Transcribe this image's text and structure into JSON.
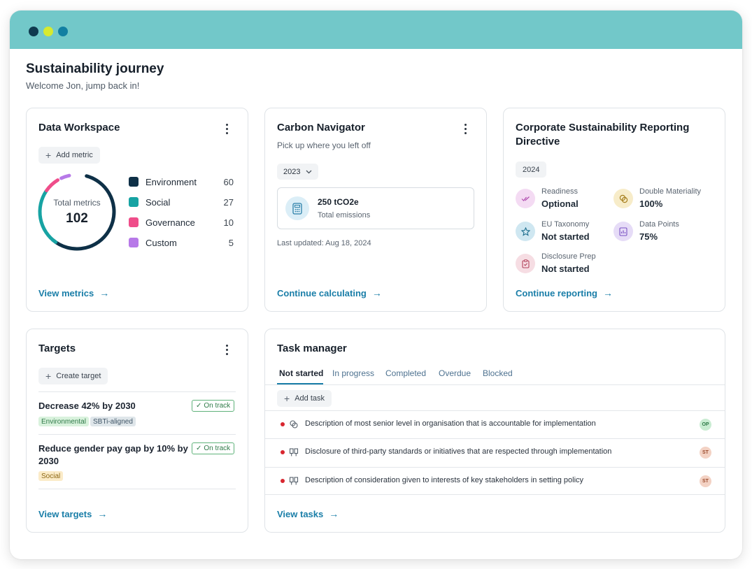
{
  "window": {
    "dots": [
      "#0f3a4f",
      "#d6ea2f",
      "#127fa2"
    ]
  },
  "header": {
    "title": "Sustainability journey",
    "subtitle": "Welcome Jon, jump back in!"
  },
  "data_workspace": {
    "title": "Data Workspace",
    "add_metric": "Add metric",
    "total_label": "Total metrics",
    "total_value": "102",
    "legend": [
      {
        "label": "Environment",
        "value": "60",
        "color": "#0e3047"
      },
      {
        "label": "Social",
        "value": "27",
        "color": "#17a3a3"
      },
      {
        "label": "Governance",
        "value": "10",
        "color": "#ef4d8a"
      },
      {
        "label": "Custom",
        "value": "5",
        "color": "#b779e8"
      }
    ],
    "link": "View metrics"
  },
  "carbon": {
    "title": "Carbon Navigator",
    "subtitle": "Pick up where you left off",
    "year": "2023",
    "emissions_value": "250 tCO2e",
    "emissions_label": "Total emissions",
    "updated": "Last updated: Aug 18, 2024",
    "link": "Continue calculating"
  },
  "csrd": {
    "title_line1": "Corporate Sustainability Reporting",
    "title_line2": "Directive",
    "year": "2024",
    "stats": [
      {
        "label": "Readiness",
        "value": "Optional",
        "icon": "double-check-icon",
        "bg": "#f4dbf3",
        "fg": "#b14fb0"
      },
      {
        "label": "Double Materiality",
        "value": "100%",
        "icon": "linked-circles-icon",
        "bg": "#f7ecc9",
        "fg": "#a7801f"
      },
      {
        "label": "EU Taxonomy",
        "value": "Not started",
        "icon": "star-icon",
        "bg": "#cfe7f1",
        "fg": "#1f6f8f"
      },
      {
        "label": "Data Points",
        "value": "75%",
        "icon": "data-sheet-icon",
        "bg": "#e6dcf7",
        "fg": "#7b52c4"
      },
      {
        "label": "Disclosure Prep",
        "value": "Not started",
        "icon": "clipboard-icon",
        "bg": "#f6dde3",
        "fg": "#b3435c"
      }
    ],
    "link": "Continue reporting"
  },
  "targets": {
    "title": "Targets",
    "create": "Create target",
    "items": [
      {
        "title": "Decrease 42% by 2030",
        "status": "On track",
        "tags": [
          "Environmental",
          "SBTi-aligned"
        ]
      },
      {
        "title_line1": "Reduce gender pay gap by 10% by",
        "title_line2": "2030",
        "status": "On track",
        "tags": [
          "Social"
        ]
      }
    ],
    "link": "View targets"
  },
  "tasks": {
    "title": "Task manager",
    "tabs": [
      "Not started",
      "In progress",
      "Completed",
      "Overdue",
      "Blocked"
    ],
    "add": "Add task",
    "rows": [
      {
        "text": "Description of most senior level in organisation that is accountable for implementation",
        "icon": "linked-circles-icon",
        "avatar": "OP"
      },
      {
        "text": "Disclosure of third-party standards or initiatives that are respected through implementation",
        "icon": "compare-icon",
        "avatar": "ST"
      },
      {
        "text": "Description of consideration given to interests of key stakeholders in setting policy",
        "icon": "compare-icon",
        "avatar": "ST"
      }
    ],
    "link": "View tasks"
  }
}
